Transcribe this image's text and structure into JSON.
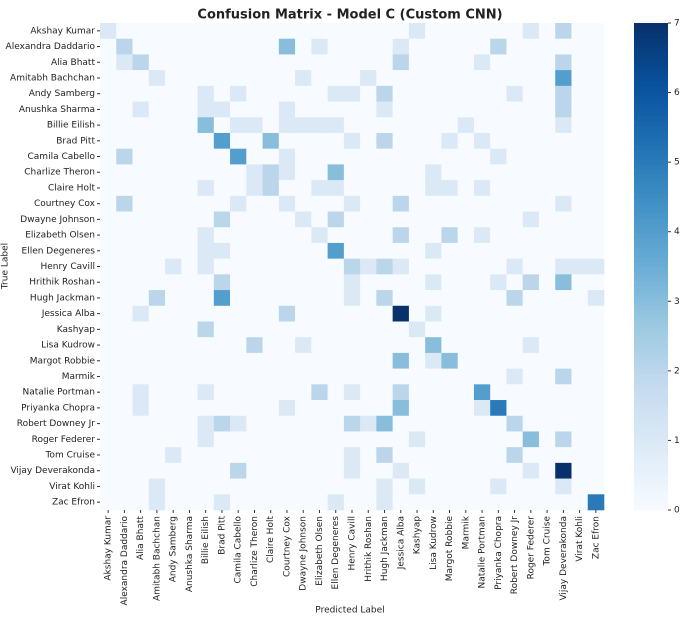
{
  "chart_data": {
    "type": "heatmap",
    "title": "Confusion Matrix - Model C (Custom CNN)",
    "x_label": "Predicted Label",
    "y_label": "True Label",
    "categories": [
      "Akshay Kumar",
      "Alexandra Daddario",
      "Alia Bhatt",
      "Amitabh Bachchan",
      "Andy Samberg",
      "Anushka Sharma",
      "Billie Eilish",
      "Brad Pitt",
      "Camila Cabello",
      "Charlize Theron",
      "Claire Holt",
      "Courtney Cox",
      "Dwayne Johnson",
      "Elizabeth Olsen",
      "Ellen Degeneres",
      "Henry Cavill",
      "Hrithik Roshan",
      "Hugh Jackman",
      "Jessica Alba",
      "Kashyap",
      "Lisa Kudrow",
      "Margot Robbie",
      "Marmik",
      "Natalie Portman",
      "Priyanka Chopra",
      "Robert Downey Jr",
      "Roger Federer",
      "Tom Cruise",
      "Vijay Deverakonda",
      "Virat Kohli",
      "Zac Efron"
    ],
    "matrix": [
      [
        1,
        0,
        0,
        0,
        0,
        0,
        0,
        0,
        0,
        0,
        0,
        0,
        0,
        0,
        0,
        0,
        0,
        0,
        0,
        1,
        0,
        0,
        0,
        0,
        0,
        0,
        1,
        0,
        2,
        0,
        0
      ],
      [
        0,
        2,
        0,
        0,
        0,
        0,
        0,
        0,
        0,
        0,
        0,
        3,
        0,
        1,
        0,
        0,
        0,
        0,
        1,
        0,
        0,
        0,
        0,
        0,
        2,
        0,
        0,
        0,
        0,
        0,
        0
      ],
      [
        0,
        1,
        2,
        0,
        0,
        0,
        0,
        0,
        0,
        0,
        0,
        0,
        0,
        0,
        0,
        0,
        0,
        0,
        2,
        0,
        0,
        0,
        0,
        1,
        0,
        0,
        0,
        0,
        2,
        0,
        0
      ],
      [
        0,
        0,
        0,
        1,
        0,
        0,
        0,
        0,
        0,
        0,
        0,
        0,
        1,
        0,
        0,
        0,
        1,
        0,
        0,
        0,
        0,
        0,
        0,
        0,
        0,
        0,
        0,
        0,
        4,
        0,
        0
      ],
      [
        0,
        0,
        0,
        0,
        0,
        0,
        1,
        0,
        1,
        0,
        0,
        0,
        0,
        0,
        1,
        1,
        0,
        2,
        0,
        0,
        0,
        0,
        0,
        0,
        0,
        1,
        0,
        0,
        2,
        0,
        0
      ],
      [
        0,
        0,
        1,
        0,
        0,
        0,
        1,
        1,
        0,
        0,
        0,
        1,
        0,
        0,
        0,
        0,
        0,
        1,
        0,
        0,
        0,
        0,
        0,
        0,
        0,
        0,
        0,
        0,
        2,
        0,
        0
      ],
      [
        0,
        0,
        0,
        0,
        0,
        0,
        3,
        0,
        1,
        1,
        0,
        1,
        1,
        1,
        1,
        0,
        0,
        0,
        0,
        0,
        0,
        0,
        1,
        0,
        0,
        0,
        0,
        0,
        1,
        0,
        0
      ],
      [
        0,
        0,
        0,
        0,
        0,
        0,
        0,
        4,
        0,
        0,
        3,
        0,
        0,
        0,
        0,
        1,
        0,
        2,
        0,
        0,
        0,
        1,
        0,
        1,
        0,
        0,
        0,
        0,
        0,
        0,
        0
      ],
      [
        0,
        2,
        0,
        0,
        0,
        0,
        0,
        0,
        4,
        0,
        0,
        1,
        0,
        0,
        0,
        0,
        0,
        0,
        0,
        0,
        0,
        0,
        0,
        0,
        1,
        0,
        0,
        0,
        0,
        0,
        0
      ],
      [
        0,
        0,
        0,
        0,
        0,
        0,
        0,
        0,
        0,
        1,
        2,
        1,
        0,
        0,
        3,
        0,
        0,
        0,
        0,
        0,
        1,
        0,
        0,
        0,
        0,
        0,
        0,
        0,
        0,
        0,
        0
      ],
      [
        0,
        0,
        0,
        0,
        0,
        0,
        1,
        0,
        0,
        1,
        2,
        0,
        0,
        1,
        1,
        0,
        0,
        0,
        0,
        0,
        1,
        1,
        0,
        1,
        0,
        0,
        0,
        0,
        0,
        0,
        0
      ],
      [
        0,
        2,
        0,
        0,
        0,
        0,
        0,
        0,
        1,
        0,
        0,
        1,
        0,
        0,
        0,
        1,
        0,
        0,
        2,
        0,
        0,
        0,
        0,
        0,
        0,
        0,
        0,
        0,
        1,
        0,
        0
      ],
      [
        0,
        0,
        0,
        0,
        0,
        0,
        0,
        2,
        0,
        0,
        0,
        0,
        1,
        0,
        2,
        0,
        0,
        0,
        0,
        0,
        0,
        0,
        0,
        0,
        0,
        0,
        1,
        0,
        0,
        0,
        0
      ],
      [
        0,
        0,
        0,
        0,
        0,
        0,
        1,
        0,
        0,
        0,
        0,
        0,
        0,
        1,
        0,
        0,
        0,
        0,
        2,
        0,
        0,
        2,
        0,
        1,
        0,
        0,
        0,
        0,
        0,
        0,
        0
      ],
      [
        0,
        0,
        0,
        0,
        0,
        0,
        1,
        1,
        0,
        0,
        0,
        0,
        0,
        0,
        4,
        0,
        0,
        0,
        0,
        0,
        1,
        0,
        0,
        0,
        0,
        0,
        0,
        0,
        0,
        0,
        0
      ],
      [
        0,
        0,
        0,
        0,
        1,
        0,
        1,
        0,
        0,
        0,
        0,
        0,
        0,
        0,
        0,
        2,
        1,
        2,
        1,
        0,
        0,
        0,
        0,
        0,
        0,
        1,
        0,
        0,
        1,
        1,
        1
      ],
      [
        0,
        0,
        0,
        0,
        0,
        0,
        0,
        2,
        0,
        0,
        0,
        0,
        0,
        0,
        0,
        1,
        0,
        0,
        0,
        0,
        1,
        0,
        0,
        0,
        1,
        0,
        2,
        0,
        3,
        0,
        0
      ],
      [
        0,
        0,
        0,
        2,
        0,
        0,
        0,
        4,
        0,
        0,
        0,
        0,
        0,
        0,
        0,
        1,
        0,
        2,
        0,
        0,
        0,
        0,
        0,
        0,
        0,
        2,
        0,
        0,
        0,
        0,
        1
      ],
      [
        0,
        0,
        1,
        0,
        0,
        0,
        0,
        0,
        0,
        0,
        0,
        2,
        0,
        0,
        0,
        0,
        0,
        0,
        7,
        0,
        1,
        0,
        0,
        0,
        0,
        0,
        0,
        0,
        0,
        0,
        0
      ],
      [
        0,
        0,
        0,
        0,
        0,
        0,
        2,
        0,
        0,
        0,
        0,
        0,
        0,
        0,
        0,
        0,
        0,
        0,
        0,
        1,
        0,
        0,
        0,
        0,
        0,
        0,
        0,
        0,
        0,
        0,
        0
      ],
      [
        0,
        0,
        0,
        0,
        0,
        0,
        0,
        0,
        0,
        2,
        0,
        0,
        1,
        0,
        0,
        0,
        0,
        0,
        0,
        0,
        3,
        0,
        0,
        0,
        0,
        0,
        1,
        0,
        0,
        0,
        0
      ],
      [
        0,
        0,
        0,
        0,
        0,
        0,
        0,
        0,
        0,
        0,
        0,
        0,
        0,
        0,
        0,
        0,
        0,
        0,
        3,
        0,
        1,
        3,
        0,
        0,
        0,
        0,
        0,
        0,
        0,
        0,
        0
      ],
      [
        0,
        0,
        0,
        0,
        0,
        0,
        0,
        0,
        0,
        0,
        0,
        0,
        0,
        0,
        0,
        0,
        0,
        0,
        0,
        0,
        0,
        0,
        0,
        0,
        0,
        1,
        0,
        0,
        2,
        0,
        0
      ],
      [
        0,
        0,
        1,
        0,
        0,
        0,
        1,
        0,
        0,
        0,
        0,
        0,
        0,
        2,
        0,
        1,
        0,
        0,
        2,
        0,
        0,
        0,
        0,
        4,
        0,
        0,
        0,
        0,
        0,
        0,
        0
      ],
      [
        0,
        0,
        1,
        0,
        0,
        0,
        0,
        0,
        0,
        0,
        0,
        1,
        0,
        0,
        0,
        0,
        0,
        0,
        3,
        0,
        0,
        0,
        0,
        1,
        5,
        0,
        0,
        0,
        0,
        0,
        0
      ],
      [
        0,
        0,
        0,
        0,
        0,
        0,
        1,
        2,
        1,
        0,
        0,
        0,
        0,
        0,
        0,
        2,
        1,
        3,
        0,
        0,
        0,
        0,
        0,
        0,
        0,
        2,
        0,
        0,
        0,
        0,
        0
      ],
      [
        0,
        0,
        0,
        0,
        0,
        0,
        1,
        0,
        0,
        0,
        0,
        0,
        0,
        0,
        0,
        0,
        0,
        0,
        0,
        1,
        0,
        0,
        0,
        0,
        0,
        0,
        3,
        0,
        2,
        0,
        0
      ],
      [
        0,
        0,
        0,
        0,
        1,
        0,
        0,
        0,
        0,
        0,
        0,
        0,
        0,
        0,
        0,
        1,
        0,
        2,
        0,
        0,
        0,
        0,
        0,
        0,
        0,
        2,
        0,
        0,
        0,
        0,
        0
      ],
      [
        0,
        0,
        0,
        0,
        0,
        0,
        0,
        0,
        2,
        0,
        0,
        0,
        0,
        0,
        0,
        1,
        0,
        0,
        1,
        0,
        0,
        0,
        0,
        0,
        0,
        0,
        1,
        0,
        7,
        0,
        0
      ],
      [
        0,
        0,
        0,
        1,
        0,
        0,
        0,
        0,
        0,
        0,
        0,
        0,
        0,
        0,
        0,
        0,
        0,
        1,
        0,
        1,
        0,
        0,
        0,
        0,
        1,
        0,
        0,
        0,
        1,
        0,
        0
      ],
      [
        0,
        0,
        0,
        1,
        0,
        0,
        0,
        1,
        0,
        0,
        0,
        0,
        0,
        0,
        1,
        0,
        0,
        1,
        0,
        0,
        0,
        0,
        0,
        0,
        0,
        0,
        0,
        0,
        0,
        0,
        5
      ]
    ],
    "colormap": [
      "#f7fbff",
      "#deebf7",
      "#c6dbef",
      "#9ecae1",
      "#6baed6",
      "#4292c6",
      "#2171b5",
      "#08519c",
      "#08306b"
    ],
    "clim": [
      0,
      7
    ],
    "cticks": [
      0,
      1,
      2,
      3,
      4,
      5,
      6,
      7
    ]
  }
}
